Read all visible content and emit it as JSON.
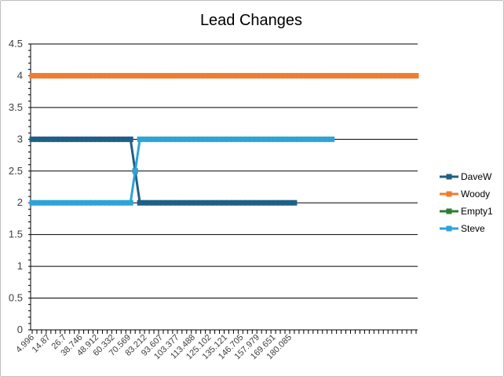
{
  "chart_data": {
    "type": "line",
    "title": "Lead Changes",
    "xlabel": "",
    "ylabel": "",
    "ylim": [
      0,
      4.5
    ],
    "yticks": [
      "0",
      "0.5",
      "1",
      "1.5",
      "2",
      "2.5",
      "3",
      "3.5",
      "4",
      "4.5"
    ],
    "xtick_labels": [
      "4.996",
      "14.87",
      "26.7",
      "38.746",
      "48.912",
      "60.332",
      "70.569",
      "83.212",
      "93.607",
      "103.377",
      "113.488",
      "125.102",
      "135.121",
      "146.705",
      "157.979",
      "169.651",
      "180.085"
    ],
    "grid": "horizontal",
    "legend_position": "right",
    "series": [
      {
        "name": "DaveW",
        "color": "#1f5f86",
        "values": [
          3,
          3,
          3,
          3,
          3,
          3,
          3,
          3,
          3,
          3,
          3,
          3,
          3,
          3,
          3,
          3,
          3,
          3,
          3,
          3,
          3,
          3,
          2.5,
          2,
          2,
          2,
          2,
          2,
          2,
          2,
          2,
          2,
          2,
          2,
          2,
          2,
          2,
          2,
          2,
          2,
          2,
          2,
          2,
          2,
          2,
          2,
          2,
          2,
          2,
          2,
          2,
          2,
          2,
          2,
          2,
          2,
          2
        ]
      },
      {
        "name": "Woody",
        "color": "#ed7d31",
        "values": [
          4,
          4,
          4,
          4,
          4,
          4,
          4,
          4,
          4,
          4,
          4,
          4,
          4,
          4,
          4,
          4,
          4,
          4,
          4,
          4,
          4,
          4,
          4,
          4,
          4,
          4,
          4,
          4,
          4,
          4,
          4,
          4,
          4,
          4,
          4,
          4,
          4,
          4,
          4,
          4,
          4,
          4,
          4,
          4,
          4,
          4,
          4,
          4,
          4,
          4,
          4,
          4,
          4,
          4,
          4,
          4,
          4,
          4,
          4,
          4,
          4,
          4,
          4,
          4,
          4,
          4,
          4,
          4,
          4,
          4,
          4,
          4,
          4,
          4,
          4,
          4,
          4,
          4,
          4,
          4,
          4,
          4,
          4
        ]
      },
      {
        "name": "Empty1",
        "color": "#2e7d32",
        "values": []
      },
      {
        "name": "Steve",
        "color": "#2ea3d6",
        "values": [
          2,
          2,
          2,
          2,
          2,
          2,
          2,
          2,
          2,
          2,
          2,
          2,
          2,
          2,
          2,
          2,
          2,
          2,
          2,
          2,
          2,
          2,
          2.5,
          3,
          3,
          3,
          3,
          3,
          3,
          3,
          3,
          3,
          3,
          3,
          3,
          3,
          3,
          3,
          3,
          3,
          3,
          3,
          3,
          3,
          3,
          3,
          3,
          3,
          3,
          3,
          3,
          3,
          3,
          3,
          3,
          3,
          3,
          3,
          3,
          3,
          3,
          3,
          3,
          3,
          3
        ]
      }
    ]
  }
}
